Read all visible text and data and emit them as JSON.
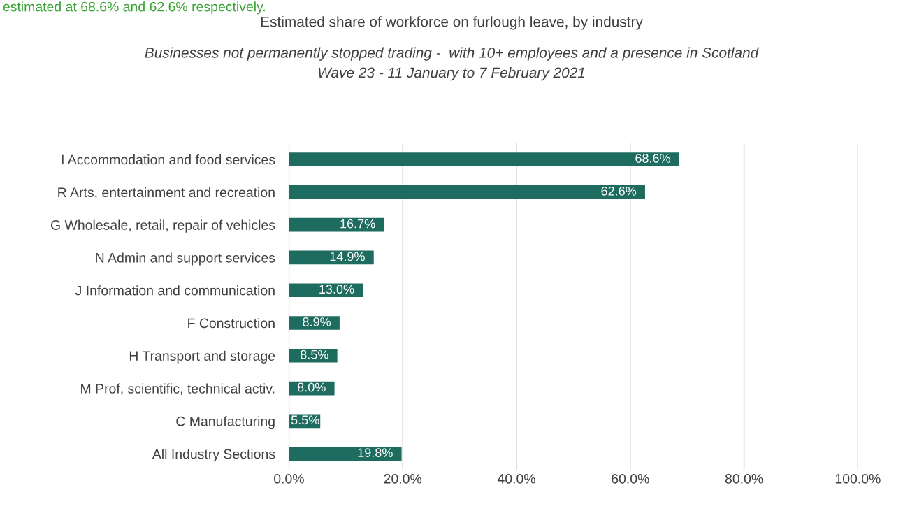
{
  "chart_data": {
    "type": "bar",
    "orientation": "horizontal",
    "title": "Estimated share of workforce on furlough leave, by industry",
    "subtitle": "Businesses not permanently stopped trading -  with 10+ employees and a presence in Scotland\nWave 23 - 11 January to 7 February 2021",
    "annotations": [
      "estimated at 68.6% and 62.6% respectively."
    ],
    "categories": [
      "I Accommodation and food services",
      "R Arts, entertainment and recreation",
      "G Wholesale, retail, repair of vehicles",
      "N Admin and support services",
      "J Information and communication",
      "F Construction",
      "H Transport and storage",
      "M Prof, scientific, technical activ.",
      "C Manufacturing",
      "All Industry Sections"
    ],
    "values": [
      68.6,
      62.6,
      16.7,
      14.9,
      13.0,
      8.9,
      8.5,
      8.0,
      5.5,
      19.8
    ],
    "value_labels": [
      "68.6%",
      "62.6%",
      "16.7%",
      "14.9%",
      "13.0%",
      "8.9%",
      "8.5%",
      "8.0%",
      "5.5%",
      "19.8%"
    ],
    "color": "#1e6b5f",
    "xlim": [
      0,
      100
    ],
    "xticks": [
      {
        "value": 0,
        "label": "0.0%"
      },
      {
        "value": 20,
        "label": "20.0%"
      },
      {
        "value": 40,
        "label": "40.0%"
      },
      {
        "value": 60,
        "label": "60.0%"
      },
      {
        "value": 80,
        "label": "80.0%"
      },
      {
        "value": 100,
        "label": "100.0%"
      }
    ],
    "grid": "x",
    "legend": false
  }
}
